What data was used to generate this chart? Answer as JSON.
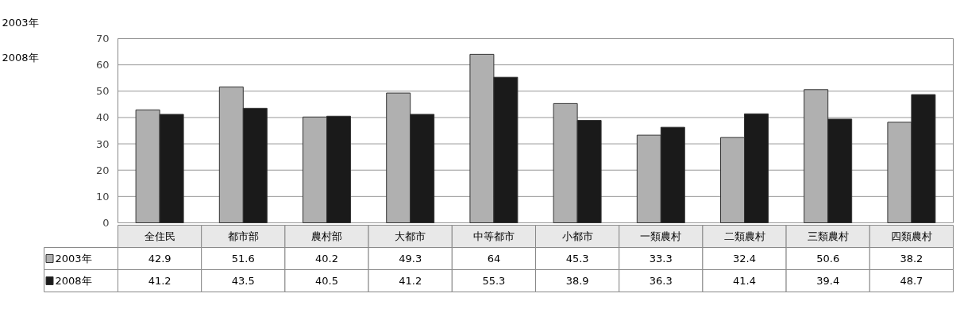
{
  "chart_data": {
    "type": "bar",
    "categories": [
      "全住民",
      "都市部",
      "農村部",
      "大都市",
      "中等都市",
      "小都市",
      "一類農村",
      "二類農村",
      "三類農村",
      "四類農村"
    ],
    "series": [
      {
        "name": "2003年",
        "color": "#b0b0b0",
        "values": [
          42.9,
          51.6,
          40.2,
          49.3,
          64,
          45.3,
          33.3,
          32.4,
          50.6,
          38.2
        ]
      },
      {
        "name": "2008年",
        "color": "#1a1a1a",
        "values": [
          41.2,
          43.5,
          40.5,
          41.2,
          55.3,
          38.9,
          36.3,
          41.4,
          39.4,
          48.7
        ]
      }
    ],
    "ylim": [
      0,
      70
    ],
    "yticks": [
      0,
      10,
      20,
      30,
      40,
      50,
      60,
      70
    ],
    "grid": "y",
    "data_labels": true,
    "legend": "bottom",
    "annotations": [
      "2003年",
      "2008年"
    ]
  }
}
